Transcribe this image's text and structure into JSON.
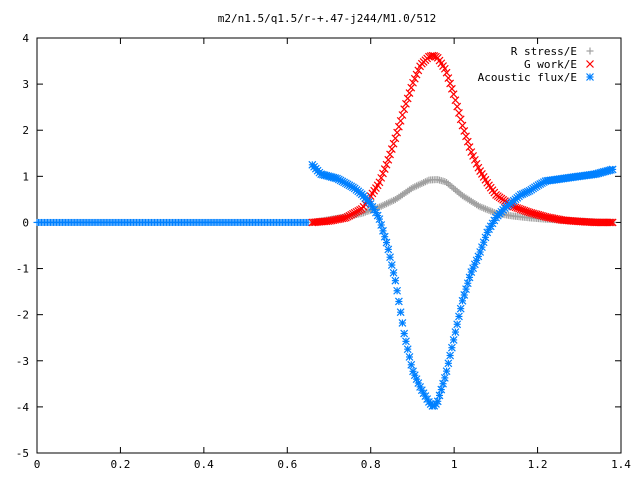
{
  "chart_data": {
    "type": "scatter",
    "title": "m2/n1.5/q1.5/r-+.47-j244/M1.0/512",
    "xlabel": "",
    "ylabel": "",
    "xlim": [
      0,
      1.4
    ],
    "ylim": [
      -5,
      4
    ],
    "xticks": [
      "0",
      "0.2",
      "0.4",
      "0.6",
      "0.8",
      "1",
      "1.2",
      "1.4"
    ],
    "yticks": [
      "4",
      "3",
      "2",
      "1",
      "0",
      "-1",
      "-2",
      "-3",
      "-4",
      "-5"
    ],
    "legend_position": "top-right",
    "grid": false,
    "series": [
      {
        "name": "R stress/E",
        "marker": "plus",
        "color": "#a0a0a0",
        "x": [
          0.66,
          0.7,
          0.74,
          0.78,
          0.82,
          0.86,
          0.9,
          0.94,
          0.96,
          0.98,
          1.02,
          1.06,
          1.1,
          1.14,
          1.18,
          1.22,
          1.26,
          1.3,
          1.34,
          1.38
        ],
        "y": [
          0.0,
          0.06,
          0.12,
          0.2,
          0.33,
          0.5,
          0.75,
          0.92,
          0.93,
          0.88,
          0.58,
          0.35,
          0.2,
          0.14,
          0.1,
          0.07,
          0.05,
          0.03,
          0.01,
          0.0
        ]
      },
      {
        "name": "G work/E",
        "marker": "cross",
        "color": "#ff0000",
        "x": [
          0.66,
          0.7,
          0.74,
          0.78,
          0.82,
          0.84,
          0.86,
          0.88,
          0.9,
          0.92,
          0.94,
          0.95,
          0.96,
          0.98,
          1.0,
          1.02,
          1.04,
          1.06,
          1.08,
          1.1,
          1.14,
          1.18,
          1.22,
          1.26,
          1.3,
          1.34,
          1.38
        ],
        "y": [
          0.0,
          0.03,
          0.1,
          0.3,
          0.85,
          1.3,
          1.85,
          2.45,
          3.0,
          3.42,
          3.6,
          3.62,
          3.58,
          3.3,
          2.75,
          2.1,
          1.55,
          1.15,
          0.85,
          0.6,
          0.35,
          0.22,
          0.12,
          0.05,
          0.02,
          0.0,
          0.0
        ]
      },
      {
        "name": "Acoustic flux/E",
        "marker": "star",
        "color": "#0080ff",
        "x": [
          0.66,
          0.68,
          0.7,
          0.72,
          0.74,
          0.76,
          0.78,
          0.8,
          0.82,
          0.84,
          0.86,
          0.88,
          0.9,
          0.92,
          0.94,
          0.95,
          0.96,
          0.98,
          1.0,
          1.02,
          1.04,
          1.06,
          1.08,
          1.1,
          1.12,
          1.14,
          1.16,
          1.18,
          1.2,
          1.22,
          1.26,
          1.3,
          1.34,
          1.38
        ],
        "y": [
          1.25,
          1.05,
          1.0,
          0.95,
          0.85,
          0.75,
          0.6,
          0.4,
          0.1,
          -0.5,
          -1.3,
          -2.4,
          -3.2,
          -3.6,
          -3.9,
          -4.0,
          -3.9,
          -3.3,
          -2.5,
          -1.7,
          -1.1,
          -0.7,
          -0.2,
          0.1,
          0.3,
          0.45,
          0.6,
          0.68,
          0.8,
          0.9,
          0.95,
          1.0,
          1.05,
          1.15
        ]
      },
      {
        "name": "",
        "marker": "plus",
        "color": "#0080ff",
        "x": [
          0.0,
          0.05,
          0.1,
          0.15,
          0.2,
          0.25,
          0.3,
          0.35,
          0.4,
          0.45,
          0.5,
          0.55,
          0.6,
          0.65
        ],
        "y": [
          0,
          0,
          0,
          0,
          0,
          0,
          0,
          0,
          0,
          0,
          0,
          0,
          0,
          0
        ]
      }
    ]
  }
}
